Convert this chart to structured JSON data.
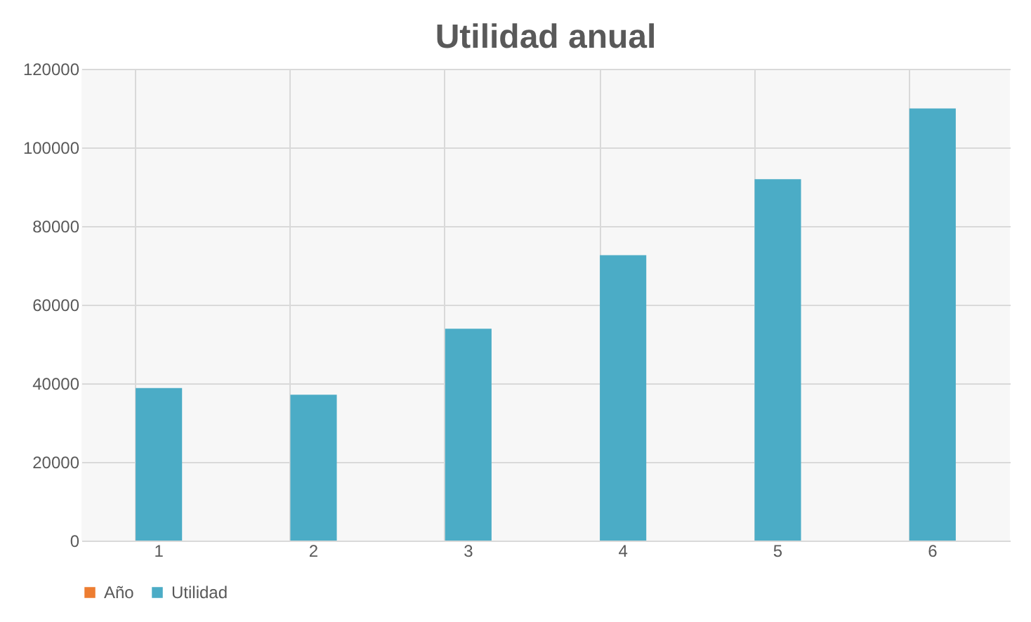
{
  "chart_data": {
    "type": "bar",
    "title": "Utilidad anual",
    "categories": [
      "1",
      "2",
      "3",
      "4",
      "5",
      "6"
    ],
    "series": [
      {
        "name": "Año",
        "color": "#ed7d31",
        "values": [
          null,
          null,
          null,
          null,
          null,
          null
        ]
      },
      {
        "name": "Utilidad",
        "color": "#4bacc6",
        "values": [
          38800,
          37100,
          53900,
          72600,
          91900,
          109900
        ]
      }
    ],
    "ylim": [
      0,
      120000
    ],
    "yticks": [
      0,
      20000,
      40000,
      60000,
      80000,
      100000,
      120000
    ],
    "grid": true,
    "legend": "bottom"
  }
}
